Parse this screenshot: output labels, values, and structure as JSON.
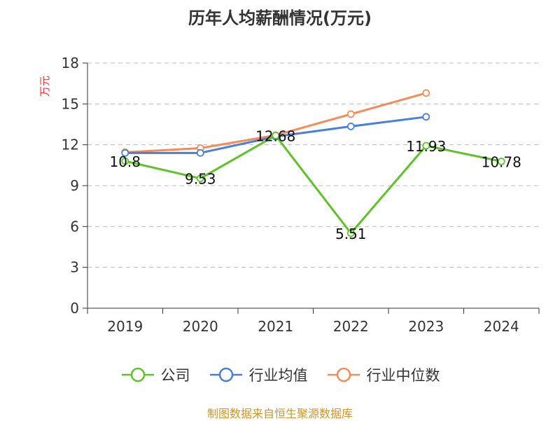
{
  "chart_data": {
    "type": "line",
    "title": "历年人均薪酬情况(万元)",
    "ylabel": "万元",
    "xlabel": "",
    "categories": [
      "2019",
      "2020",
      "2021",
      "2022",
      "2023",
      "2024"
    ],
    "ylim": [
      0,
      18
    ],
    "yticks": [
      0,
      3,
      6,
      9,
      12,
      15,
      18
    ],
    "grid": true,
    "legend_position": "bottom",
    "series": [
      {
        "name": "公司",
        "color": "#5fc22a",
        "values": [
          10.8,
          9.53,
          12.68,
          5.51,
          11.93,
          10.78
        ],
        "labels": [
          "10.8",
          "9.53",
          "12.68",
          "5.51",
          "11.93",
          "10.78"
        ]
      },
      {
        "name": "行业均值",
        "color": "#4a7fd8",
        "values": [
          11.4,
          11.4,
          12.6,
          13.35,
          14.05,
          null
        ]
      },
      {
        "name": "行业中位数",
        "color": "#f28c5a",
        "values": [
          11.45,
          11.75,
          12.7,
          14.25,
          15.8,
          null
        ]
      }
    ]
  },
  "source": "制图数据来自恒生聚源数据库"
}
